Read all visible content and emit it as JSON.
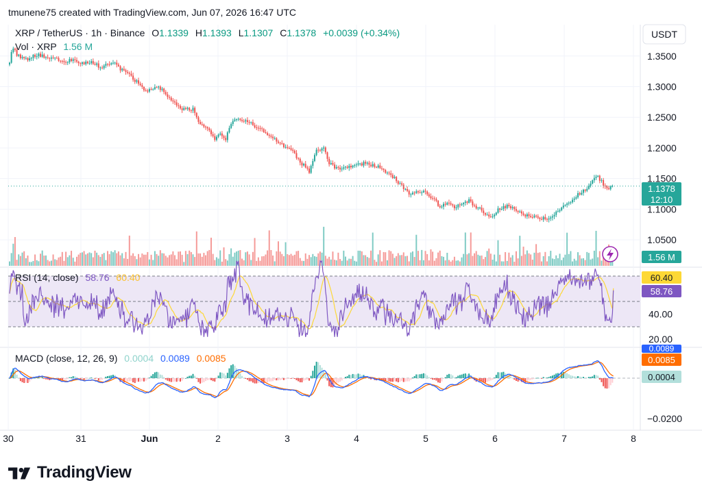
{
  "header": {
    "attribution": "tmunene75 created with TradingView.com, Jun 07, 2026 16:47 UTC"
  },
  "symbol": {
    "title": "XRP / TetherUS · 1h · Binance",
    "o_label": "O",
    "o_value": "1.1339",
    "h_label": "H",
    "h_value": "1.1393",
    "l_label": "L",
    "l_value": "1.1307",
    "c_label": "C",
    "c_value": "1.1378",
    "change": "+0.0039 (+0.34%)"
  },
  "volume_legend": {
    "label": "Vol · XRP",
    "value": "1.56 M"
  },
  "currency_button": "USDT",
  "price_badge": {
    "price": "1.1378",
    "countdown": "12:10"
  },
  "volume_badge": "1.56 M",
  "rsi_legend": {
    "label": "RSI (14, close)",
    "rsi": "58.76",
    "ma": "60.40"
  },
  "rsi_badges": {
    "ma": "60.40",
    "rsi": "58.76"
  },
  "macd_legend": {
    "label": "MACD (close, 12, 26, 9)",
    "hist": "0.0004",
    "macd": "0.0089",
    "signal": "0.0085"
  },
  "macd_badges": {
    "macd": "0.0089",
    "signal": "0.0085",
    "hist": "0.0004"
  },
  "brand": {
    "name": "TradingView"
  },
  "colors": {
    "up": "#26a69a",
    "down": "#ef5350",
    "vol_up": "#7fcbc4",
    "vol_down": "#f59a98",
    "rsi_line": "#7e57c2",
    "rsi_ma": "#fdd835",
    "rsi_band": "#ede7f6",
    "macd_line": "#2962ff",
    "signal_line": "#ff6d00",
    "hist_up_strong": "#26a69a",
    "hist_up_weak": "#b2dfdb",
    "hist_down_strong": "#ef5350",
    "hist_down_weak": "#ffcdd2",
    "text": "#131722",
    "muted": "#787b86",
    "grid": "#f0f3fa"
  },
  "chart_data": {
    "type": "candlestick",
    "title": "XRP / TetherUS · 1h · Binance",
    "price_axis": {
      "ticks": [
        "1.3500",
        "1.3000",
        "1.2500",
        "1.2000",
        "1.1500",
        "1.1000",
        "1.0500"
      ],
      "range": [
        1.03,
        1.39
      ]
    },
    "time_axis": {
      "ticks": [
        "30",
        "31",
        "Jun",
        "2",
        "3",
        "4",
        "5",
        "6",
        "7",
        "8"
      ]
    },
    "price_path_keypoints": [
      [
        0,
        1.342
      ],
      [
        3,
        1.366
      ],
      [
        8,
        1.352
      ],
      [
        20,
        1.345
      ],
      [
        30,
        1.352
      ],
      [
        45,
        1.348
      ],
      [
        60,
        1.34
      ],
      [
        70,
        1.345
      ],
      [
        80,
        1.338
      ],
      [
        90,
        1.34
      ],
      [
        100,
        1.332
      ],
      [
        115,
        1.34
      ],
      [
        125,
        1.325
      ],
      [
        135,
        1.315
      ],
      [
        145,
        1.3
      ],
      [
        152,
        1.292
      ],
      [
        160,
        1.3
      ],
      [
        168,
        1.295
      ],
      [
        178,
        1.28
      ],
      [
        188,
        1.265
      ],
      [
        198,
        1.262
      ],
      [
        203,
        1.264
      ],
      [
        207,
        1.245
      ],
      [
        213,
        1.238
      ],
      [
        220,
        1.228
      ],
      [
        226,
        1.212
      ],
      [
        232,
        1.225
      ],
      [
        238,
        1.215
      ],
      [
        243,
        1.24
      ],
      [
        250,
        1.245
      ],
      [
        262,
        1.243
      ],
      [
        275,
        1.232
      ],
      [
        288,
        1.218
      ],
      [
        300,
        1.205
      ],
      [
        312,
        1.195
      ],
      [
        318,
        1.18
      ],
      [
        325,
        1.17
      ],
      [
        330,
        1.162
      ],
      [
        338,
        1.198
      ],
      [
        346,
        1.198
      ],
      [
        352,
        1.175
      ],
      [
        358,
        1.168
      ],
      [
        368,
        1.166
      ],
      [
        378,
        1.17
      ],
      [
        390,
        1.175
      ],
      [
        400,
        1.172
      ],
      [
        408,
        1.168
      ],
      [
        416,
        1.16
      ],
      [
        424,
        1.15
      ],
      [
        432,
        1.138
      ],
      [
        440,
        1.125
      ],
      [
        448,
        1.128
      ],
      [
        458,
        1.13
      ],
      [
        466,
        1.118
      ],
      [
        474,
        1.104
      ],
      [
        482,
        1.11
      ],
      [
        490,
        1.102
      ],
      [
        498,
        1.11
      ],
      [
        506,
        1.114
      ],
      [
        514,
        1.104
      ],
      [
        522,
        1.096
      ],
      [
        530,
        1.088
      ],
      [
        538,
        1.1
      ],
      [
        548,
        1.106
      ],
      [
        558,
        1.1
      ],
      [
        568,
        1.09
      ],
      [
        578,
        1.087
      ],
      [
        590,
        1.085
      ],
      [
        600,
        1.09
      ],
      [
        610,
        1.106
      ],
      [
        620,
        1.116
      ],
      [
        630,
        1.128
      ],
      [
        640,
        1.14
      ],
      [
        646,
        1.156
      ],
      [
        652,
        1.145
      ],
      [
        658,
        1.133
      ],
      [
        663,
        1.138
      ]
    ],
    "volume_scale_max": 1.0,
    "rsi": {
      "ticks": [
        "60.40",
        "40.00",
        "20.00"
      ],
      "bands": [
        70,
        30
      ],
      "midline": 50,
      "last": 58.76,
      "ma_last": 60.4
    },
    "macd": {
      "ticks": [
        "0.0089",
        "0.0085",
        "0.0004",
        "−0.0200"
      ],
      "last_macd": 0.0089,
      "last_signal": 0.0085,
      "last_hist": 0.0004
    }
  }
}
